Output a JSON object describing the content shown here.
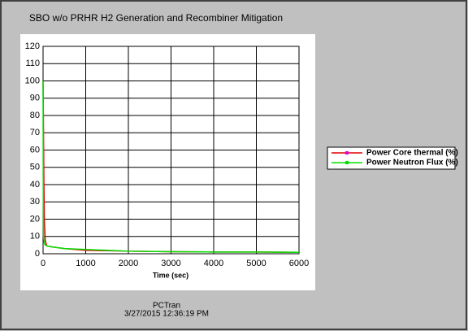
{
  "chart_data": {
    "type": "line",
    "title": "SBO w/o PRHR H2 Generation and Recombiner Mitigation",
    "xlabel": "Time (sec)",
    "xlim": [
      0,
      6000
    ],
    "xticks": [
      0,
      1000,
      2000,
      3000,
      4000,
      5000,
      6000
    ],
    "ylim": [
      0,
      120
    ],
    "yticks": [
      0,
      10,
      20,
      30,
      40,
      50,
      60,
      70,
      80,
      90,
      100,
      110,
      120
    ],
    "grid": true,
    "legend": "right",
    "series": [
      {
        "name": "Power Core thermal (%)",
        "color": "#e00000",
        "x": [
          0,
          5,
          10,
          20,
          30,
          50,
          80,
          100,
          200,
          500,
          1000,
          2000,
          3000,
          4000,
          5000,
          6000
        ],
        "values": [
          100,
          88,
          70,
          40,
          20,
          8,
          5,
          4.5,
          4,
          3,
          2,
          1.5,
          1.2,
          1,
          1,
          0.8
        ]
      },
      {
        "name": "Power Neutron Flux (%)",
        "color": "#00e000",
        "x": [
          0,
          5,
          10,
          30,
          50,
          100,
          200,
          500,
          1000,
          1500,
          2000,
          3000,
          4000,
          5000,
          6000
        ],
        "values": [
          100,
          30,
          10,
          6,
          5,
          4.5,
          4,
          3,
          2.5,
          2,
          1.5,
          1.2,
          1,
          1,
          0.8
        ]
      }
    ]
  },
  "footer": {
    "program": "PCTran",
    "timestamp": "3/27/2015 12:36:19 PM"
  }
}
